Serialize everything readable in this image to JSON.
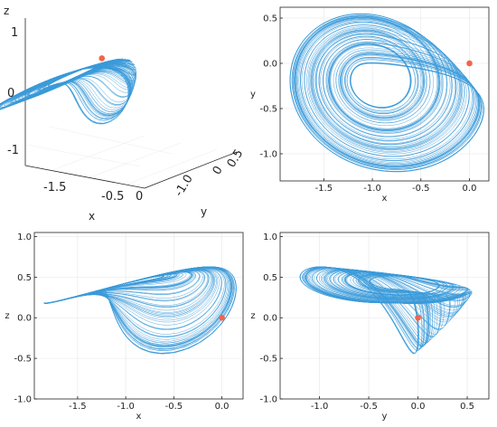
{
  "colors": {
    "trajectory": "#3a9ad9",
    "point": "#f0654a",
    "axis": "#222222",
    "grid": "#e6e6e6"
  },
  "chart_data": [
    {
      "id": "xyz",
      "type": "line3d",
      "description_free": true,
      "xlabel": "x",
      "ylabel": "y",
      "zlabel": "z",
      "x_ticks": [
        "-1.5",
        "-0.5",
        "0"
      ],
      "y_ticks": [
        "-1.0",
        "0",
        "0.5"
      ],
      "z_ticks": [
        "1",
        "0",
        "-1"
      ],
      "equilibrium": {
        "x": 0,
        "y": 0,
        "z": 0
      }
    },
    {
      "id": "xy",
      "type": "line",
      "xlabel": "x",
      "ylabel": "y",
      "xlim": [
        -1.95,
        0.2
      ],
      "ylim": [
        -1.3,
        0.62
      ],
      "x_ticks": [
        -1.5,
        -1.0,
        -0.5,
        0.0
      ],
      "y_ticks": [
        0.5,
        0.0,
        -0.5,
        -1.0
      ],
      "equilibrium": {
        "x": 0,
        "y": 0
      }
    },
    {
      "id": "xz",
      "type": "line",
      "xlabel": "x",
      "ylabel": "z",
      "xlim": [
        -1.95,
        0.22
      ],
      "ylim": [
        -1.0,
        1.05
      ],
      "x_ticks": [
        -1.5,
        -1.0,
        -0.5,
        0.0
      ],
      "y_ticks": [
        1.0,
        0.5,
        0.0,
        -0.5,
        -1.0
      ],
      "equilibrium": {
        "x": 0,
        "z": 0
      }
    },
    {
      "id": "yz",
      "type": "line",
      "xlabel": "y",
      "ylabel": "z",
      "xlim": [
        -1.4,
        0.72
      ],
      "ylim": [
        -1.0,
        1.05
      ],
      "x_ticks": [
        -1.0,
        -0.5,
        0.0,
        0.5
      ],
      "y_ticks": [
        1.0,
        0.5,
        0.0,
        -0.5,
        -1.0
      ],
      "equilibrium": {
        "y": 0,
        "z": 0
      }
    }
  ]
}
